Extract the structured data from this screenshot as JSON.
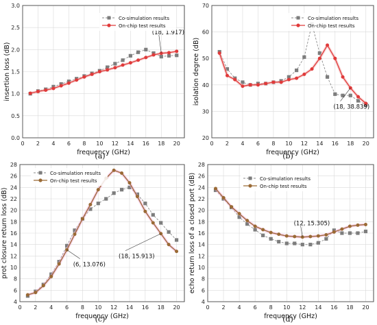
{
  "colors": {
    "cosim": "#8a8a8a",
    "test_red": "#e03a3a",
    "test_brown": "#9a6a35",
    "cosim_fill": "#7d7d7d",
    "red_band": "#f3b1b1",
    "brown_band": "#f3a9d6"
  },
  "chart_data": [
    {
      "id": "a",
      "type": "line",
      "caption": "(a)",
      "xlabel": "frequency (GHz)",
      "ylabel": "insertion loss (dB)",
      "xlim": [
        0,
        21
      ],
      "ylim": [
        0.0,
        3.0
      ],
      "xticks": [
        "0",
        "2",
        "4",
        "6",
        "8",
        "10",
        "12",
        "14",
        "16",
        "18",
        "20"
      ],
      "yticks": [
        "0.0",
        "0.5",
        "1.0",
        "1.5",
        "2.0",
        "2.5",
        "3.0"
      ],
      "grid": true,
      "legend": "top-right",
      "series": [
        {
          "name": "Co-simulation results",
          "style": "cosim",
          "x": [
            1,
            2,
            3,
            4,
            5,
            6,
            7,
            8,
            9,
            10,
            11,
            12,
            13,
            14,
            15,
            16,
            17,
            18,
            19,
            20
          ],
          "y": [
            1.0,
            1.06,
            1.1,
            1.16,
            1.22,
            1.28,
            1.34,
            1.4,
            1.46,
            1.52,
            1.6,
            1.68,
            1.76,
            1.86,
            1.94,
            2.0,
            1.92,
            1.84,
            1.86,
            1.87
          ]
        },
        {
          "name": "On-chip test results",
          "style": "red",
          "x": [
            1,
            2,
            3,
            4,
            5,
            6,
            7,
            8,
            9,
            10,
            11,
            12,
            13,
            14,
            15,
            16,
            17,
            18,
            19,
            20
          ],
          "y": [
            1.01,
            1.05,
            1.08,
            1.12,
            1.18,
            1.24,
            1.31,
            1.38,
            1.44,
            1.5,
            1.54,
            1.59,
            1.65,
            1.7,
            1.76,
            1.82,
            1.88,
            1.917,
            1.93,
            1.96
          ]
        }
      ],
      "annotations": [
        {
          "text": "(18, 1.917)",
          "x": 18,
          "y": 1.917,
          "tx": 16.8,
          "ty": 2.35
        }
      ]
    },
    {
      "id": "b",
      "type": "line",
      "caption": "(b)",
      "xlabel": "frequency (GHz)",
      "ylabel": "isolation degree (dB)",
      "xlim": [
        0,
        21
      ],
      "ylim": [
        20,
        70
      ],
      "xticks": [
        "0",
        "2",
        "4",
        "6",
        "8",
        "10",
        "12",
        "14",
        "16",
        "18",
        "20"
      ],
      "yticks": [
        "20",
        "30",
        "40",
        "50",
        "60",
        "70"
      ],
      "grid": true,
      "legend": "top-right",
      "series": [
        {
          "name": "Co-simulation results",
          "style": "cosim",
          "x": [
            1,
            2,
            3,
            4,
            5,
            6,
            7,
            8,
            9,
            10,
            11,
            12,
            13,
            14,
            15,
            16,
            17,
            18,
            19,
            20
          ],
          "y": [
            52.5,
            46,
            42.5,
            41,
            40,
            40.5,
            40.5,
            41,
            41.5,
            43,
            45.5,
            50.5,
            63,
            52,
            43,
            36.5,
            36,
            36,
            34,
            32.5
          ]
        },
        {
          "name": "On-chip test results",
          "style": "red",
          "x": [
            1,
            2,
            3,
            4,
            5,
            6,
            7,
            8,
            9,
            10,
            11,
            12,
            13,
            14,
            15,
            16,
            17,
            18,
            19,
            20
          ],
          "y": [
            52,
            43.5,
            42,
            39.5,
            40,
            40,
            40.5,
            41,
            41,
            42,
            42.5,
            44,
            46,
            50,
            55,
            50,
            43,
            38.839,
            35.5,
            33
          ]
        }
      ],
      "annotations": [
        {
          "text": "(18, 38.839)",
          "x": 18,
          "y": 38.839,
          "tx": 15.8,
          "ty": 31
        }
      ]
    },
    {
      "id": "c",
      "type": "line",
      "caption": "(c)",
      "xlabel": "frequency (GHz)",
      "ylabel": "prot closure return loss (dB)",
      "xlim": [
        0,
        21
      ],
      "ylim": [
        4,
        28
      ],
      "xticks": [
        "0",
        "2",
        "4",
        "6",
        "8",
        "10",
        "12",
        "14",
        "16",
        "18",
        "20"
      ],
      "yticks": [
        "4",
        "6",
        "8",
        "10",
        "12",
        "14",
        "16",
        "18",
        "20",
        "22",
        "24",
        "26",
        "28"
      ],
      "grid": true,
      "legend": "top-left",
      "series": [
        {
          "name": "Co-simulation results",
          "style": "cosim",
          "x": [
            1,
            2,
            3,
            4,
            5,
            6,
            7,
            8,
            9,
            10,
            11,
            12,
            13,
            14,
            15,
            16,
            17,
            18,
            19,
            20
          ],
          "y": [
            5,
            5.8,
            7,
            8.8,
            11,
            13.8,
            16.5,
            18.5,
            20.2,
            21.2,
            22,
            23,
            23.6,
            24,
            22.8,
            21.2,
            19.2,
            17.8,
            16.2,
            14.8
          ]
        },
        {
          "name": "On-chip test results",
          "style": "brown",
          "x": [
            1,
            2,
            3,
            4,
            5,
            6,
            7,
            8,
            9,
            10,
            11,
            12,
            13,
            14,
            15,
            16,
            17,
            18,
            19,
            20
          ],
          "y": [
            5.2,
            5.6,
            6.8,
            8.4,
            10.6,
            13.076,
            15.8,
            18.5,
            21,
            23.6,
            25.6,
            27,
            26.5,
            24.8,
            22.4,
            19.8,
            17.8,
            15.913,
            14,
            12.8
          ]
        }
      ],
      "annotations": [
        {
          "text": "(6, 13.076)",
          "x": 6,
          "y": 13.076,
          "tx": 6.8,
          "ty": 10.2
        },
        {
          "text": "(18, 15.913)",
          "x": 18,
          "y": 15.913,
          "tx": 12.6,
          "ty": 11.6
        }
      ]
    },
    {
      "id": "d",
      "type": "line",
      "caption": "(d)",
      "xlabel": "frequency (GHz)",
      "ylabel": "echo return loss of a closed port (dB)",
      "xlim": [
        0,
        21
      ],
      "ylim": [
        4,
        28
      ],
      "xticks": [
        "0",
        "2",
        "4",
        "6",
        "8",
        "10",
        "12",
        "14",
        "16",
        "18",
        "20"
      ],
      "yticks": [
        "4",
        "6",
        "8",
        "10",
        "12",
        "14",
        "16",
        "18",
        "20",
        "22",
        "24",
        "26",
        "28"
      ],
      "grid": true,
      "legend": "top-center",
      "series": [
        {
          "name": "Co-simulation results",
          "style": "cosim",
          "x": [
            1,
            2,
            3,
            4,
            5,
            6,
            7,
            8,
            9,
            10,
            11,
            12,
            13,
            14,
            15,
            16,
            17,
            18,
            19,
            20
          ],
          "y": [
            23.5,
            22,
            20.5,
            18.8,
            17.6,
            16.6,
            15.6,
            15,
            14.5,
            14.2,
            14.2,
            14,
            14,
            14.3,
            15,
            16.5,
            16,
            16,
            16,
            16.3
          ]
        },
        {
          "name": "On-chip test results",
          "style": "brown",
          "x": [
            1,
            2,
            3,
            4,
            5,
            6,
            7,
            8,
            9,
            10,
            11,
            12,
            13,
            14,
            15,
            16,
            17,
            18,
            19,
            20
          ],
          "y": [
            23.8,
            22.2,
            20.6,
            19.4,
            18.2,
            17.2,
            16.6,
            16.1,
            15.8,
            15.5,
            15.4,
            15.305,
            15.4,
            15.5,
            15.7,
            16.2,
            16.7,
            17.2,
            17.4,
            17.5
          ]
        }
      ],
      "annotations": [
        {
          "text": "(12, 15.305)",
          "x": 12,
          "y": 15.305,
          "tx": 10.9,
          "ty": 17.4
        }
      ]
    }
  ]
}
